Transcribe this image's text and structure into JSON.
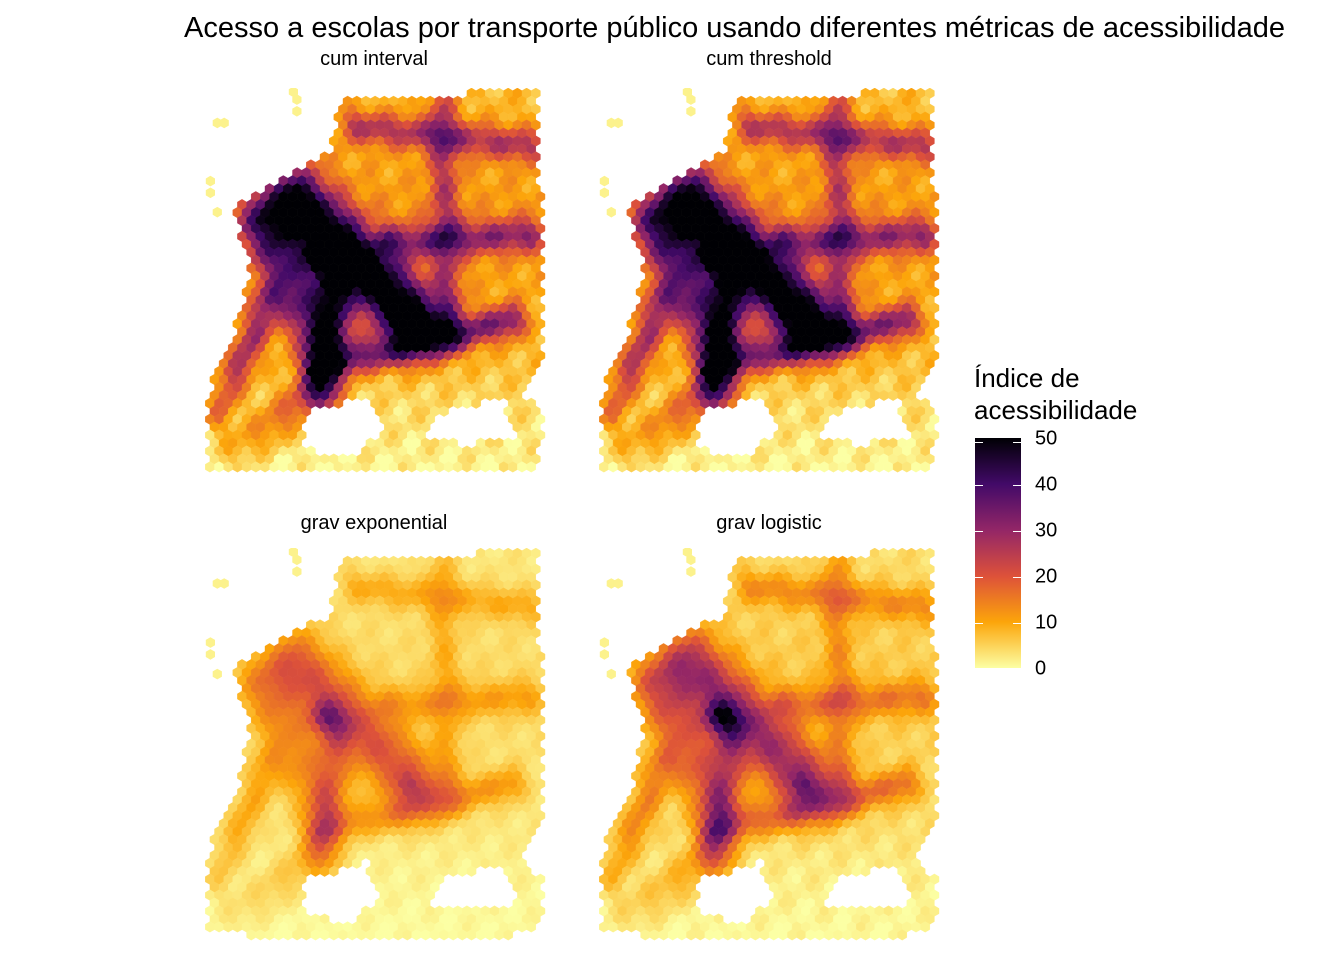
{
  "title": "Acesso a escolas por transporte público usando diferentes métricas de acessibilidade",
  "legend": {
    "title_line1": "Índice de",
    "title_line2": "acessibilidade",
    "ticks": [
      "50",
      "40",
      "30",
      "20",
      "10",
      "0"
    ],
    "scale": "inferno (reversed)",
    "range": [
      0,
      50
    ]
  },
  "panels": [
    {
      "label": "cum  interval",
      "intensity": 1.0
    },
    {
      "label": "cum  threshold",
      "intensity": 0.98
    },
    {
      "label": "grav  exponential",
      "intensity": 0.35
    },
    {
      "label": "grav  logistic",
      "intensity": 0.5
    }
  ],
  "colors": {
    "low": "#fcffa4",
    "mid_low": "#fca50a",
    "mid": "#dd513a",
    "mid_high": "#932667",
    "high": "#420a68",
    "max": "#000004"
  }
}
